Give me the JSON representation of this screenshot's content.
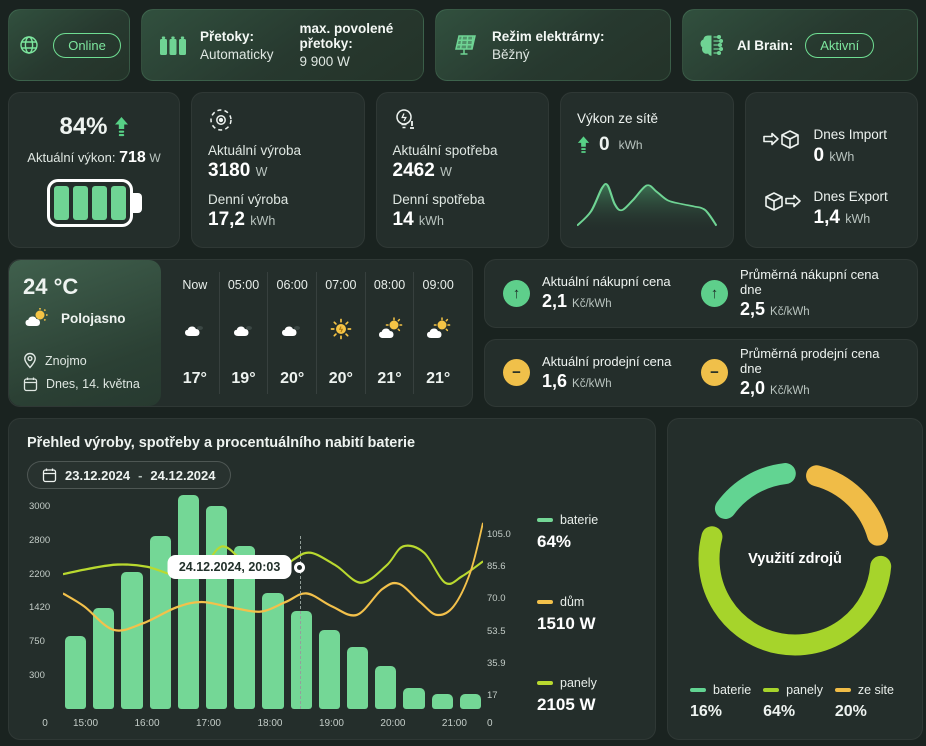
{
  "colors": {
    "accent_green": "#6fd494",
    "badge_green": "#7de69e",
    "lime": "#b9d92f",
    "orange": "#f3c14b",
    "donut_green": "#62d492",
    "donut_lime": "#a6d42b",
    "donut_orange": "#f0bc47",
    "card_bg": "#242e2b",
    "page_bg": "#1a2320"
  },
  "status_bar": {
    "online_badge": "Online",
    "pretoky_label": "Přetoky:",
    "pretoky_value": "Automaticky",
    "pretoky_max_label": "max. povolené přetoky:",
    "pretoky_max_value": "9 900 W",
    "rezim_label": "Režim elektrárny:",
    "rezim_value": "Běžný",
    "ai_label": "AI Brain:",
    "ai_badge": "Aktivní"
  },
  "battery_card": {
    "percent": "84%",
    "label": "Aktuální výkon:",
    "value": "718",
    "unit": "W"
  },
  "production_card": {
    "current_label": "Aktuální výroba",
    "current_value": "3180",
    "current_unit": "W",
    "daily_label": "Denní výroba",
    "daily_value": "17,2",
    "daily_unit": "kWh"
  },
  "consumption_card": {
    "current_label": "Aktuální spotřeba",
    "current_value": "2462",
    "current_unit": "W",
    "daily_label": "Denní spotřeba",
    "daily_value": "14",
    "daily_unit": "kWh"
  },
  "grid_card": {
    "title": "Výkon ze sítě",
    "value": "0",
    "unit": "kWh"
  },
  "import_export_card": {
    "import_label": "Dnes Import",
    "import_value": "0",
    "import_unit": "kWh",
    "export_label": "Dnes Export",
    "export_value": "1,4",
    "export_unit": "kWh"
  },
  "weather": {
    "temp": "24 °C",
    "condition": "Polojasno",
    "city": "Znojmo",
    "date": "Dnes, 14. května",
    "forecast": [
      {
        "time": "Now",
        "icon": "cloud",
        "temp": "17°"
      },
      {
        "time": "05:00",
        "icon": "cloud",
        "temp": "19°"
      },
      {
        "time": "06:00",
        "icon": "cloud",
        "temp": "20°"
      },
      {
        "time": "07:00",
        "icon": "sun",
        "temp": "20°"
      },
      {
        "time": "08:00",
        "icon": "sun-cloud",
        "temp": "21°"
      },
      {
        "time": "09:00",
        "icon": "sun-cloud",
        "temp": "21°"
      }
    ]
  },
  "prices": {
    "buy_current_label": "Aktuální nákupní cena",
    "buy_current_value": "2,1",
    "buy_current_unit": "Kč/kWh",
    "buy_avg_label": "Průměrná nákupní cena dne",
    "buy_avg_value": "2,5",
    "buy_avg_unit": "Kč/kWh",
    "sell_current_label": "Aktuální prodejní cena",
    "sell_current_value": "1,6",
    "sell_current_unit": "Kč/kWh",
    "sell_avg_label": "Průměrná prodejní cena dne",
    "sell_avg_value": "2,0",
    "sell_avg_unit": "Kč/kWh"
  },
  "overview": {
    "title": "Přehled výroby, spotřeby a procentuálního nabití baterie",
    "date_from": "23.12.2024",
    "date_sep": "-",
    "date_to": "24.12.2024",
    "tooltip": "24.12.2024, 20:03"
  },
  "donut": {
    "center_label": "Využití zdrojů"
  },
  "chart_data": [
    {
      "id": "overview-combo",
      "type": "bar",
      "title": "Přehled výroby, spotřeby a procentuálního nabití baterie",
      "x_tick_labels": [
        "15:00",
        "16:00",
        "17:00",
        "18:00",
        "19:00",
        "20:00",
        "21:00"
      ],
      "x_interval_minutes": 30,
      "left_axis_ticks_top_to_bottom": [
        "3000",
        "2800",
        "2200",
        "1420",
        "750",
        "300"
      ],
      "left_axis_zero": "0",
      "right_axis_ticks_top_to_bottom": [
        "105.0",
        "85.6",
        "70.0",
        "53.5",
        "35.9",
        "17"
      ],
      "right_axis_zero": "0",
      "grid": false,
      "legend_position": "right",
      "bars": {
        "name": "baterie",
        "unit": "%",
        "color": "#74d796",
        "values_percent": [
          35,
          48,
          65,
          82,
          100,
          96,
          77,
          55,
          47,
          37,
          29,
          20,
          10,
          7,
          7
        ],
        "height_fractions": [
          0.34,
          0.47,
          0.64,
          0.81,
          1.0,
          0.95,
          0.76,
          0.54,
          0.46,
          0.37,
          0.29,
          0.2,
          0.1,
          0.07,
          0.07
        ]
      },
      "lines": [
        {
          "name": "panely",
          "unit": "W",
          "color": "#b9d92f",
          "approx_values_w": [
            2210,
            2300,
            2360,
            2300,
            2210,
            2420,
            2620,
            2350,
            2230,
            2420,
            2520,
            2340,
            2150,
            2360,
            2640,
            2580,
            2150,
            2230,
            2420
          ],
          "points_norm": [
            [
              0,
              0.37
            ],
            [
              0.06,
              0.345
            ],
            [
              0.13,
              0.325
            ],
            [
              0.2,
              0.335
            ],
            [
              0.27,
              0.375
            ],
            [
              0.33,
              0.345
            ],
            [
              0.38,
              0.24
            ],
            [
              0.44,
              0.33
            ],
            [
              0.5,
              0.375
            ],
            [
              0.55,
              0.3
            ],
            [
              0.59,
              0.27
            ],
            [
              0.65,
              0.33
            ],
            [
              0.71,
              0.41
            ],
            [
              0.77,
              0.33
            ],
            [
              0.81,
              0.24
            ],
            [
              0.86,
              0.27
            ],
            [
              0.91,
              0.41
            ],
            [
              0.95,
              0.38
            ],
            [
              1,
              0.31
            ]
          ]
        },
        {
          "name": "dům",
          "unit": "W",
          "color": "#f3c14b",
          "approx_values_w": [
            1980,
            1700,
            1240,
            1300,
            1480,
            1510,
            1450,
            1420,
            1510,
            1650,
            1460,
            1380,
            1800,
            1880,
            1540,
            1380,
            1540,
            2100,
            2950
          ],
          "points_norm": [
            [
              0,
              0.46
            ],
            [
              0.05,
              0.52
            ],
            [
              0.12,
              0.63
            ],
            [
              0.19,
              0.6
            ],
            [
              0.27,
              0.525
            ],
            [
              0.33,
              0.5
            ],
            [
              0.4,
              0.525
            ],
            [
              0.47,
              0.545
            ],
            [
              0.53,
              0.5
            ],
            [
              0.58,
              0.46
            ],
            [
              0.64,
              0.52
            ],
            [
              0.7,
              0.56
            ],
            [
              0.76,
              0.44
            ],
            [
              0.8,
              0.415
            ],
            [
              0.85,
              0.5
            ],
            [
              0.89,
              0.56
            ],
            [
              0.93,
              0.52
            ],
            [
              0.97,
              0.36
            ],
            [
              1,
              0.13
            ]
          ]
        }
      ],
      "cursor": {
        "label": "24.12.2024, 20:03",
        "x_fraction": 0.565
      },
      "legend": [
        {
          "name": "baterie",
          "value": "64%",
          "color": "#74d796"
        },
        {
          "name": "dům",
          "value": "1510 W",
          "color": "#f3c14b"
        },
        {
          "name": "panely",
          "value": "2105 W",
          "color": "#b9d92f"
        }
      ]
    },
    {
      "id": "usage-donut",
      "type": "pie",
      "title": "Využití zdrojů",
      "labels": [
        "baterie",
        "panely",
        "ze site"
      ],
      "values": [
        16,
        64,
        20
      ],
      "colors": [
        "#62d492",
        "#a6d42b",
        "#f0bc47"
      ],
      "legend_position": "bottom",
      "draw_order": [
        {
          "label": "baterie",
          "pct": 16,
          "color": "#62d492"
        },
        {
          "label": "ze site",
          "pct": 20,
          "color": "#f0bc47"
        },
        {
          "label": "panely",
          "pct": 64,
          "color": "#a6d42b"
        }
      ],
      "legend": [
        {
          "name": "baterie",
          "value": "16%",
          "color": "#62d492"
        },
        {
          "name": "panely",
          "value": "64%",
          "color": "#a6d42b"
        },
        {
          "name": "ze site",
          "value": "20%",
          "color": "#f0bc47"
        }
      ]
    },
    {
      "id": "grid-sparkline",
      "type": "area",
      "title": "Výkon ze sítě",
      "color": "#6fd494",
      "points_norm": [
        [
          0,
          0.85
        ],
        [
          0.1,
          0.62
        ],
        [
          0.18,
          0.24
        ],
        [
          0.22,
          0.2
        ],
        [
          0.27,
          0.5
        ],
        [
          0.32,
          0.6
        ],
        [
          0.4,
          0.44
        ],
        [
          0.5,
          0.2
        ],
        [
          0.57,
          0.3
        ],
        [
          0.65,
          0.44
        ],
        [
          0.75,
          0.5
        ],
        [
          0.84,
          0.54
        ],
        [
          0.92,
          0.6
        ],
        [
          1,
          0.85
        ]
      ]
    }
  ]
}
